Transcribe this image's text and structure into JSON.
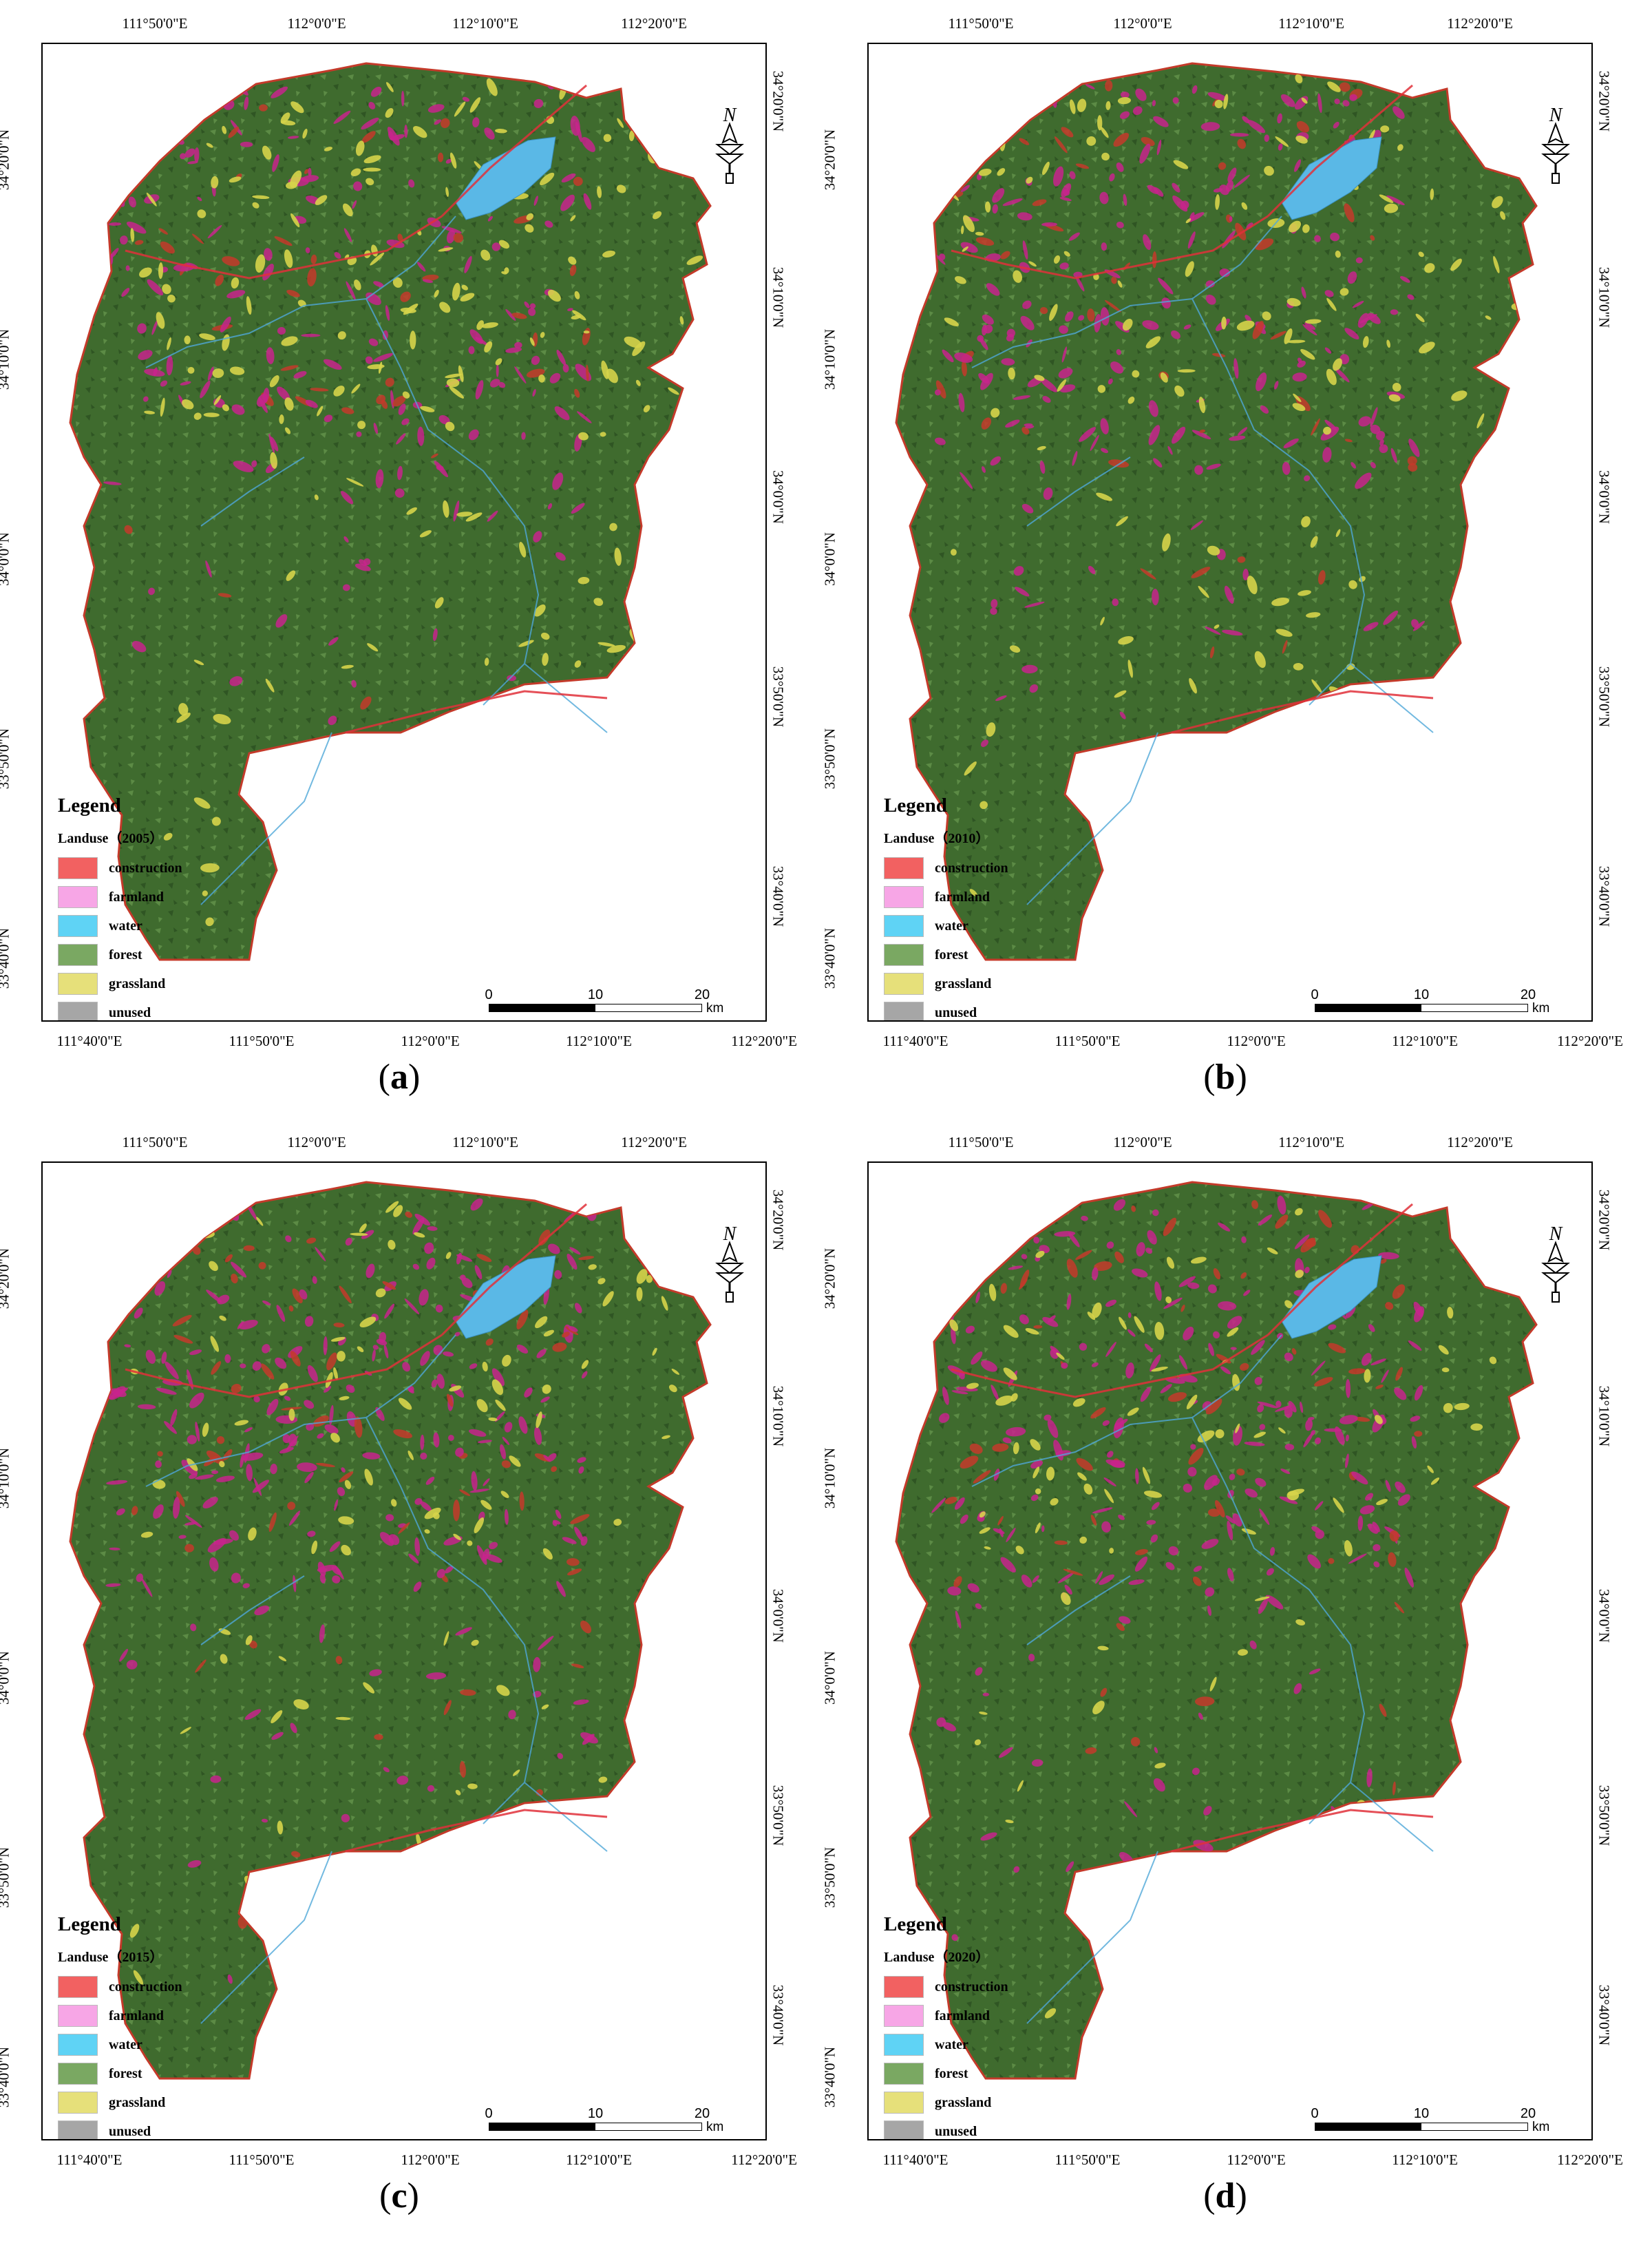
{
  "panels": [
    {
      "id": "a",
      "caption_letter": "a",
      "legend_sub": "Landuse（2005）"
    },
    {
      "id": "b",
      "caption_letter": "b",
      "legend_sub": "Landuse（2010）"
    },
    {
      "id": "c",
      "caption_letter": "c",
      "legend_sub": "Landuse（2015）"
    },
    {
      "id": "d",
      "caption_letter": "d",
      "legend_sub": "Landuse（2020）"
    }
  ],
  "legend": {
    "title": "Legend",
    "items": [
      {
        "label": "construction",
        "color": "#f26161"
      },
      {
        "label": "farmland",
        "color": "#f7a6e6"
      },
      {
        "label": "water",
        "color": "#5fd3f5"
      },
      {
        "label": "forest",
        "color": "#7aa862"
      },
      {
        "label": "grassland",
        "color": "#e6e07a"
      },
      {
        "label": "unused",
        "color": "#a6a6a6"
      }
    ]
  },
  "axes": {
    "top": [
      "111°50'0\"E",
      "112°0'0\"E",
      "112°10'0\"E",
      "112°20'0\"E"
    ],
    "bottom": [
      "111°40'0\"E",
      "111°50'0\"E",
      "112°0'0\"E",
      "112°10'0\"E",
      "112°20'0\"E"
    ],
    "left": [
      "34°20'0\"N",
      "34°10'0\"N",
      "34°0'0\"N",
      "33°50'0\"N",
      "33°40'0\"N"
    ],
    "right": [
      "34°20'0\"N",
      "34°10'0\"N",
      "34°0'0\"N",
      "33°50'0\"N",
      "33°40'0\"N"
    ]
  },
  "scale": {
    "labels": [
      "0",
      "10",
      "20"
    ],
    "unit": "km"
  },
  "north_label": "N",
  "colors": {
    "region_dark": "#3f6b2e",
    "farm_magenta": "#c8238c",
    "water": "#5ab8e6",
    "grass": "#d6d44a",
    "border": "#c43a2a"
  }
}
